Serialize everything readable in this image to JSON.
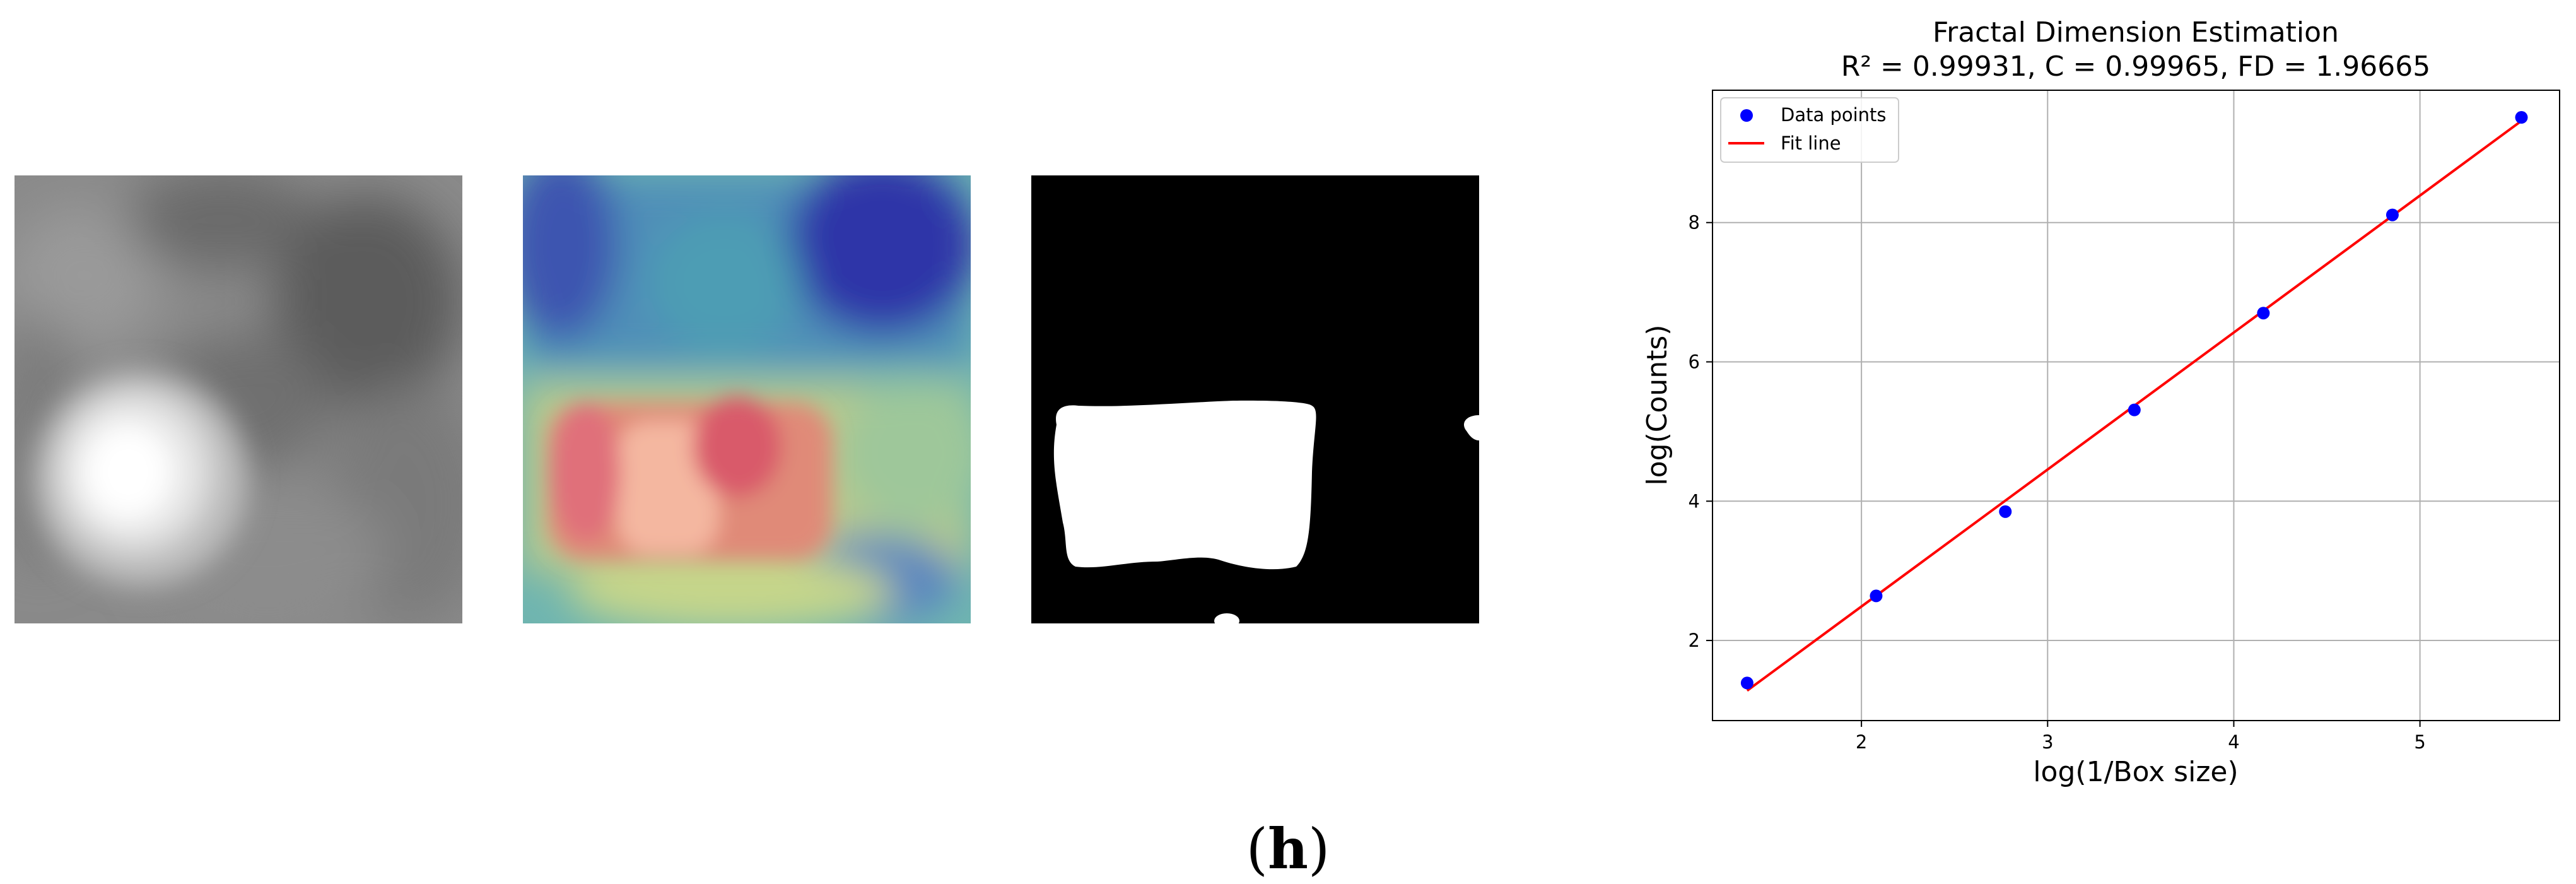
{
  "figure": {
    "caption_letter": "h",
    "panels": [
      {
        "name": "grayscale-input-image",
        "colormap": "gray"
      },
      {
        "name": "heatmap-overlay-image",
        "colormap": "jet"
      },
      {
        "name": "binary-mask-image",
        "colormap": "binary"
      }
    ]
  },
  "chart_data": {
    "type": "scatter",
    "title": "Fractal Dimension Estimation",
    "subtitle": "R² = 0.99931, C = 0.99965,  FD = 1.96665",
    "xlabel": "log(1/Box size)",
    "ylabel": "log(Counts)",
    "xlim": [
      1.2,
      5.75
    ],
    "ylim": [
      0.85,
      9.9
    ],
    "xticks": [
      2,
      3,
      4,
      5
    ],
    "yticks": [
      2,
      4,
      6,
      8
    ],
    "grid": true,
    "legend_position": "upper-left",
    "series": [
      {
        "name": "Data points",
        "kind": "scatter",
        "color": "#0000ff",
        "x": [
          1.386,
          2.079,
          2.773,
          3.466,
          4.159,
          4.852,
          5.545
        ],
        "y": [
          1.39,
          2.64,
          3.85,
          5.31,
          6.7,
          8.11,
          9.51
        ]
      },
      {
        "name": "Fit line",
        "kind": "line",
        "color": "#ff0000",
        "x": [
          1.386,
          5.545
        ],
        "y": [
          1.28,
          9.46
        ]
      }
    ]
  }
}
